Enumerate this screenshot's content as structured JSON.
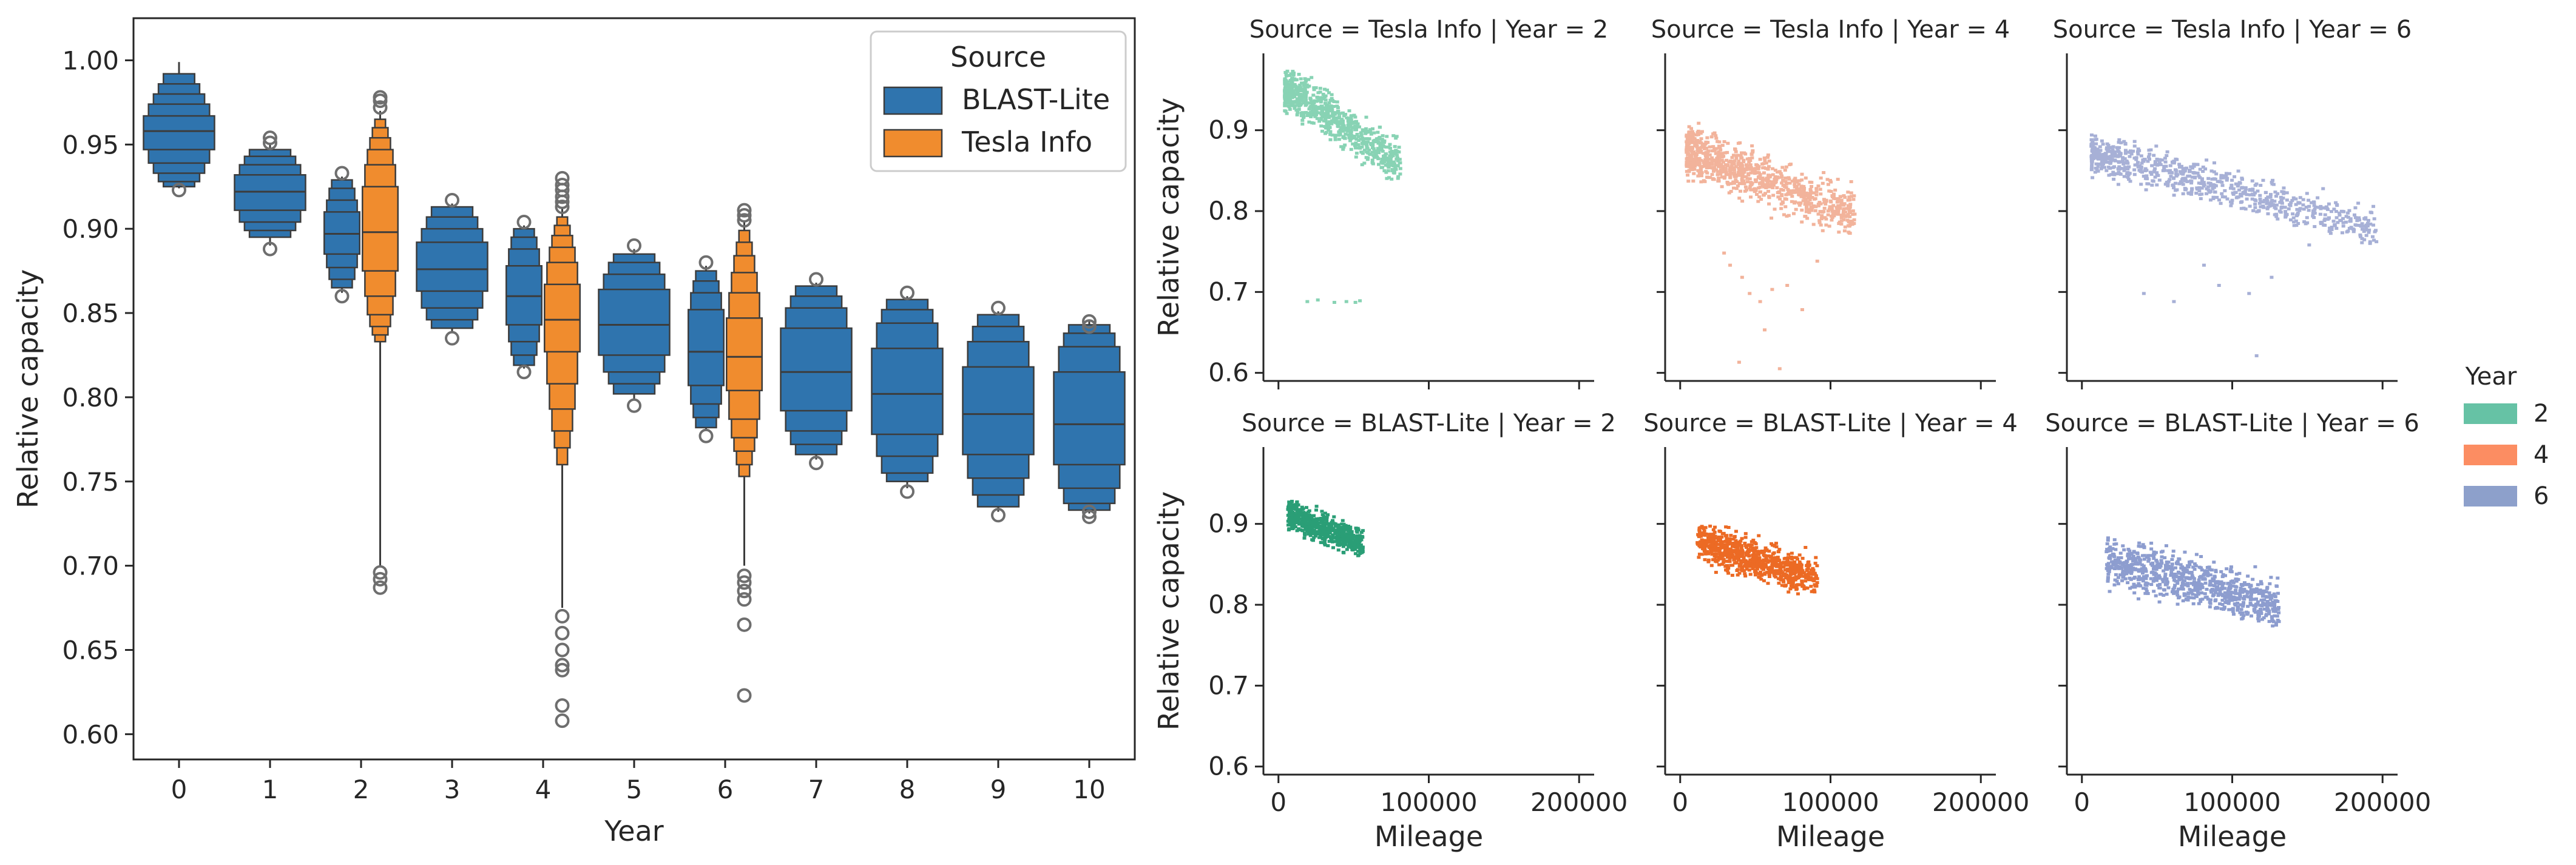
{
  "colors": {
    "BLAST-Lite": "#2f74ae",
    "Tesla Info": "#f08c2e",
    "year_2_tesla": "#88d3b4",
    "year_4_tesla": "#f2b39b",
    "year_6_tesla": "#a7b0d6",
    "year_2_blast": "#2a9e76",
    "year_4_blast": "#ec6a24",
    "year_6_blast": "#8d9dcf",
    "legend_2": "#66c2a5",
    "legend_4": "#fc8d62",
    "legend_6": "#8da0cb"
  },
  "chart_data": [
    {
      "type": "boxen",
      "xlabel": "Year",
      "ylabel": "Relative capacity",
      "ylim": [
        0.585,
        1.025
      ],
      "yticks": [
        "0.60",
        "0.65",
        "0.70",
        "0.75",
        "0.80",
        "0.85",
        "0.90",
        "0.95",
        "1.00"
      ],
      "categories": [
        "0",
        "1",
        "2",
        "3",
        "4",
        "5",
        "6",
        "7",
        "8",
        "9",
        "10"
      ],
      "legend": {
        "title": "Source",
        "position": "top-right",
        "entries": [
          "BLAST-Lite",
          "Tesla Info"
        ]
      },
      "boxes": [
        {
          "year": 0,
          "source": "BLAST-Lite",
          "median": 0.958,
          "levels": [
            [
              0.947,
              0.967
            ],
            [
              0.939,
              0.974
            ],
            [
              0.933,
              0.98
            ],
            [
              0.928,
              0.986
            ],
            [
              0.925,
              0.992
            ]
          ],
          "whisker": [
            0.924,
            0.999
          ],
          "outliers": [
            0.923
          ]
        },
        {
          "year": 1,
          "source": "BLAST-Lite",
          "median": 0.922,
          "levels": [
            [
              0.911,
              0.932
            ],
            [
              0.904,
              0.938
            ],
            [
              0.899,
              0.943
            ],
            [
              0.895,
              0.947
            ]
          ],
          "whisker": [
            0.89,
            0.95
          ],
          "outliers": [
            0.888,
            0.951,
            0.954
          ]
        },
        {
          "year": 2,
          "source": "BLAST-Lite",
          "median": 0.897,
          "levels": [
            [
              0.885,
              0.91
            ],
            [
              0.877,
              0.917
            ],
            [
              0.87,
              0.924
            ],
            [
              0.865,
              0.929
            ]
          ],
          "whisker": [
            0.862,
            0.931
          ],
          "outliers": [
            0.86,
            0.933
          ]
        },
        {
          "year": 2,
          "source": "Tesla Info",
          "median": 0.898,
          "levels": [
            [
              0.875,
              0.925
            ],
            [
              0.86,
              0.938
            ],
            [
              0.849,
              0.947
            ],
            [
              0.842,
              0.954
            ],
            [
              0.837,
              0.96
            ],
            [
              0.833,
              0.965
            ]
          ],
          "whisker": [
            0.7,
            0.97
          ],
          "outliers": [
            0.687,
            0.692,
            0.696,
            0.972,
            0.976,
            0.978
          ]
        },
        {
          "year": 3,
          "source": "BLAST-Lite",
          "median": 0.876,
          "levels": [
            [
              0.863,
              0.892
            ],
            [
              0.853,
              0.9
            ],
            [
              0.846,
              0.907
            ],
            [
              0.841,
              0.913
            ]
          ],
          "whisker": [
            0.838,
            0.915
          ],
          "outliers": [
            0.835,
            0.917
          ]
        },
        {
          "year": 4,
          "source": "BLAST-Lite",
          "median": 0.86,
          "levels": [
            [
              0.843,
              0.878
            ],
            [
              0.833,
              0.888
            ],
            [
              0.825,
              0.895
            ],
            [
              0.819,
              0.9
            ]
          ],
          "whisker": [
            0.817,
            0.902
          ],
          "outliers": [
            0.815,
            0.904
          ]
        },
        {
          "year": 4,
          "source": "Tesla Info",
          "median": 0.846,
          "levels": [
            [
              0.827,
              0.867
            ],
            [
              0.808,
              0.88
            ],
            [
              0.793,
              0.889
            ],
            [
              0.78,
              0.896
            ],
            [
              0.77,
              0.902
            ],
            [
              0.76,
              0.907
            ]
          ],
          "whisker": [
            0.675,
            0.912
          ],
          "outliers": [
            0.608,
            0.617,
            0.638,
            0.641,
            0.65,
            0.66,
            0.67,
            0.913,
            0.916,
            0.919,
            0.923,
            0.926,
            0.93
          ]
        },
        {
          "year": 5,
          "source": "BLAST-Lite",
          "median": 0.843,
          "levels": [
            [
              0.825,
              0.864
            ],
            [
              0.815,
              0.873
            ],
            [
              0.808,
              0.88
            ],
            [
              0.802,
              0.885
            ]
          ],
          "whisker": [
            0.798,
            0.888
          ],
          "outliers": [
            0.795,
            0.89
          ]
        },
        {
          "year": 6,
          "source": "BLAST-Lite",
          "median": 0.827,
          "levels": [
            [
              0.807,
              0.852
            ],
            [
              0.796,
              0.862
            ],
            [
              0.788,
              0.869
            ],
            [
              0.782,
              0.875
            ]
          ],
          "whisker": [
            0.78,
            0.878
          ],
          "outliers": [
            0.777,
            0.88
          ]
        },
        {
          "year": 6,
          "source": "Tesla Info",
          "median": 0.824,
          "levels": [
            [
              0.804,
              0.847
            ],
            [
              0.787,
              0.862
            ],
            [
              0.776,
              0.874
            ],
            [
              0.768,
              0.884
            ],
            [
              0.76,
              0.892
            ],
            [
              0.753,
              0.899
            ]
          ],
          "whisker": [
            0.7,
            0.905
          ],
          "outliers": [
            0.623,
            0.665,
            0.68,
            0.685,
            0.69,
            0.694,
            0.905,
            0.908,
            0.911
          ]
        },
        {
          "year": 7,
          "source": "BLAST-Lite",
          "median": 0.815,
          "levels": [
            [
              0.792,
              0.841
            ],
            [
              0.78,
              0.853
            ],
            [
              0.772,
              0.86
            ],
            [
              0.766,
              0.866
            ]
          ],
          "whisker": [
            0.763,
            0.868
          ],
          "outliers": [
            0.761,
            0.87
          ]
        },
        {
          "year": 8,
          "source": "BLAST-Lite",
          "median": 0.802,
          "levels": [
            [
              0.778,
              0.829
            ],
            [
              0.765,
              0.844
            ],
            [
              0.755,
              0.852
            ],
            [
              0.75,
              0.858
            ]
          ],
          "whisker": [
            0.746,
            0.86
          ],
          "outliers": [
            0.744,
            0.862
          ]
        },
        {
          "year": 9,
          "source": "BLAST-Lite",
          "median": 0.79,
          "levels": [
            [
              0.766,
              0.818
            ],
            [
              0.752,
              0.833
            ],
            [
              0.742,
              0.842
            ],
            [
              0.735,
              0.849
            ]
          ],
          "whisker": [
            0.732,
            0.851
          ],
          "outliers": [
            0.73,
            0.853
          ]
        },
        {
          "year": 10,
          "source": "BLAST-Lite",
          "median": 0.784,
          "levels": [
            [
              0.76,
              0.815
            ],
            [
              0.746,
              0.83
            ],
            [
              0.737,
              0.838
            ],
            [
              0.733,
              0.843
            ]
          ],
          "whisker": [
            0.731,
            0.845
          ],
          "outliers": [
            0.729,
            0.732,
            0.842,
            0.845
          ]
        }
      ]
    },
    {
      "type": "scatter",
      "xlabel": "Mileage",
      "ylabel": "Relative capacity",
      "xlim": [
        -10000,
        210000
      ],
      "ylim": [
        0.59,
        0.995
      ],
      "xticks": [
        0,
        100000,
        200000
      ],
      "xtick_labels": [
        "0",
        "100000",
        "200000"
      ],
      "yticks": [
        0.6,
        0.7,
        0.8,
        0.9
      ],
      "ytick_labels": [
        "0.6",
        "0.7",
        "0.8",
        "0.9"
      ],
      "legend": {
        "title": "Year",
        "position": "center-right",
        "entries": [
          "2",
          "4",
          "6"
        ]
      },
      "facets": [
        {
          "title": "Source = Tesla Info | Year = 2",
          "source": "Tesla Info",
          "year": 2,
          "row": 0,
          "col": 0,
          "clouds": [
            {
              "x": [
                3000,
                80000
              ],
              "y": [
                0.84,
                0.975
              ],
              "count": 700,
              "slope": -1.2e-06,
              "spread_y": 0.045
            }
          ],
          "extra_points": [
            [
              18000,
              0.69
            ],
            [
              25000,
              0.692
            ],
            [
              36000,
              0.689
            ],
            [
              44000,
              0.69
            ],
            [
              50000,
              0.689
            ],
            [
              53000,
              0.691
            ]
          ]
        },
        {
          "title": "Source = Tesla Info | Year = 4",
          "source": "Tesla Info",
          "year": 4,
          "row": 0,
          "col": 1,
          "clouds": [
            {
              "x": [
                3000,
                115000
              ],
              "y": [
                0.76,
                0.915
              ],
              "count": 900,
              "slope": -7e-07,
              "spread_y": 0.05
            }
          ],
          "extra_points": [
            [
              32000,
              0.735
            ],
            [
              40000,
              0.72
            ],
            [
              45000,
              0.7
            ],
            [
              52000,
              0.69
            ],
            [
              60000,
              0.705
            ],
            [
              70000,
              0.71
            ],
            [
              38000,
              0.615
            ],
            [
              65000,
              0.607
            ],
            [
              55000,
              0.655
            ],
            [
              80000,
              0.68
            ],
            [
              28000,
              0.75
            ],
            [
              90000,
              0.74
            ]
          ]
        },
        {
          "title": "Source = Tesla Info | Year = 6",
          "source": "Tesla Info",
          "year": 6,
          "row": 0,
          "col": 2,
          "clouds": [
            {
              "x": [
                5000,
                195000
              ],
              "y": [
                0.74,
                0.915
              ],
              "count": 750,
              "slope": -5e-07,
              "spread_y": 0.04
            }
          ],
          "extra_points": [
            [
              40000,
              0.7
            ],
            [
              60000,
              0.69
            ],
            [
              90000,
              0.71
            ],
            [
              110000,
              0.7
            ],
            [
              125000,
              0.72
            ],
            [
              80000,
              0.735
            ],
            [
              115000,
              0.623
            ],
            [
              150000,
              0.76
            ]
          ]
        },
        {
          "title": "Source = BLAST-Lite | Year = 2",
          "source": "BLAST-Lite",
          "year": 2,
          "row": 1,
          "col": 0,
          "clouds": [
            {
              "x": [
                5000,
                55000
              ],
              "y": [
                0.86,
                0.93
              ],
              "count": 600,
              "slope": -8e-07,
              "spread_y": 0.03
            }
          ],
          "extra_points": []
        },
        {
          "title": "Source = BLAST-Lite | Year = 4",
          "source": "BLAST-Lite",
          "year": 4,
          "row": 1,
          "col": 1,
          "clouds": [
            {
              "x": [
                10000,
                90000
              ],
              "y": [
                0.815,
                0.9
              ],
              "count": 750,
              "slope": -6e-07,
              "spread_y": 0.04
            }
          ],
          "extra_points": []
        },
        {
          "title": "Source = BLAST-Lite | Year = 6",
          "source": "BLAST-Lite",
          "year": 6,
          "row": 1,
          "col": 2,
          "clouds": [
            {
              "x": [
                15000,
                130000
              ],
              "y": [
                0.775,
                0.885
              ],
              "count": 800,
              "slope": -5e-07,
              "spread_y": 0.05
            }
          ],
          "extra_points": []
        }
      ]
    }
  ]
}
